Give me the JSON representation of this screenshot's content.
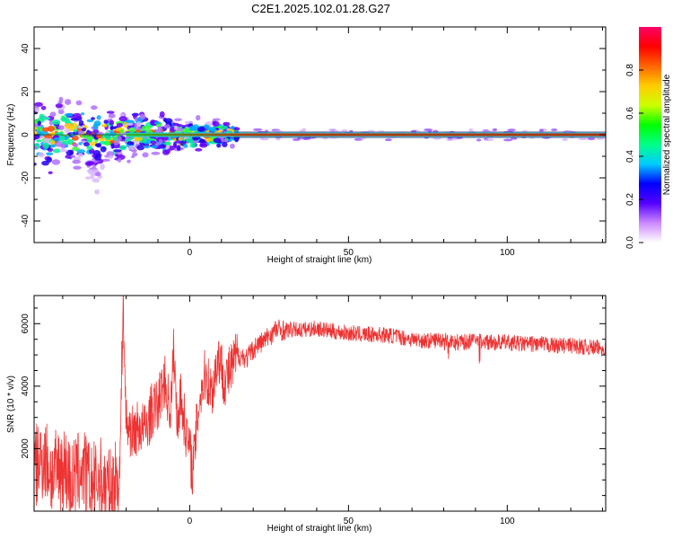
{
  "title": "C2E1.2025.102.01.28.G27",
  "chart_data": [
    {
      "type": "heatmap",
      "title": "C2E1.2025.102.01.28.G27",
      "xlabel": "Height of straight line (km)",
      "ylabel": "Frequency (Hz)",
      "xlim": [
        -49,
        131
      ],
      "ylim": [
        -50,
        50
      ],
      "x_ticks": [
        0,
        50,
        100
      ],
      "x_tick_labels": [
        "0",
        "50",
        "100"
      ],
      "y_ticks": [
        -40,
        -20,
        0,
        20,
        40
      ],
      "y_tick_labels": [
        "-40",
        "-20",
        "0",
        "20",
        "40"
      ],
      "ridge_frequency_hz": 0,
      "colorbar": {
        "label": "Normalized spectral amplitude",
        "range": [
          0,
          1
        ],
        "ticks": [
          0.0,
          0.2,
          0.4,
          0.6,
          0.8
        ],
        "tick_labels": [
          "0.0",
          "0.2",
          "0.4",
          "0.6",
          "0.8"
        ],
        "colors": [
          "#ffffff",
          "#cc88ff",
          "#5500ff",
          "#0000ff",
          "#00ccff",
          "#00ff88",
          "#00ff00",
          "#ccff00",
          "#ffcc00",
          "#ff6600",
          "#ff0000",
          "#ff0066"
        ]
      }
    },
    {
      "type": "line",
      "xlabel": "Height of straight line (km)",
      "ylabel": "SNR (10 * v/v)",
      "xlim": [
        -49,
        131
      ],
      "ylim": [
        0,
        6900
      ],
      "x_ticks": [
        0,
        50,
        100
      ],
      "x_tick_labels": [
        "0",
        "50",
        "100"
      ],
      "y_ticks": [
        2000,
        4000,
        6000
      ],
      "y_tick_labels": [
        "2000",
        "4000",
        "6000"
      ],
      "color": "#ee3333",
      "x": [
        -49,
        -46,
        -43,
        -40,
        -37,
        -34,
        -31,
        -28,
        -25,
        -22,
        -21,
        -20,
        -18,
        -16,
        -14,
        -12,
        -10,
        -8,
        -6,
        -5,
        -4,
        -3,
        -1,
        1,
        3,
        5,
        7,
        9,
        11,
        13,
        15,
        18,
        21,
        24,
        27,
        30,
        35,
        40,
        45,
        50,
        55,
        60,
        65,
        70,
        75,
        80,
        85,
        90,
        95,
        100,
        105,
        110,
        115,
        120,
        125,
        131
      ],
      "values": [
        1300,
        1800,
        1100,
        1500,
        900,
        1400,
        800,
        1000,
        600,
        1200,
        6800,
        2800,
        2500,
        2700,
        2600,
        3200,
        3400,
        4200,
        3200,
        5200,
        2800,
        3700,
        2500,
        1300,
        3600,
        4400,
        3800,
        5000,
        4200,
        4500,
        5000,
        4900,
        5300,
        5500,
        5800,
        5800,
        5800,
        5850,
        5750,
        5700,
        5650,
        5650,
        5600,
        5500,
        5450,
        5500,
        5400,
        5450,
        5400,
        5400,
        5350,
        5350,
        5300,
        5300,
        5250,
        5200
      ]
    }
  ]
}
